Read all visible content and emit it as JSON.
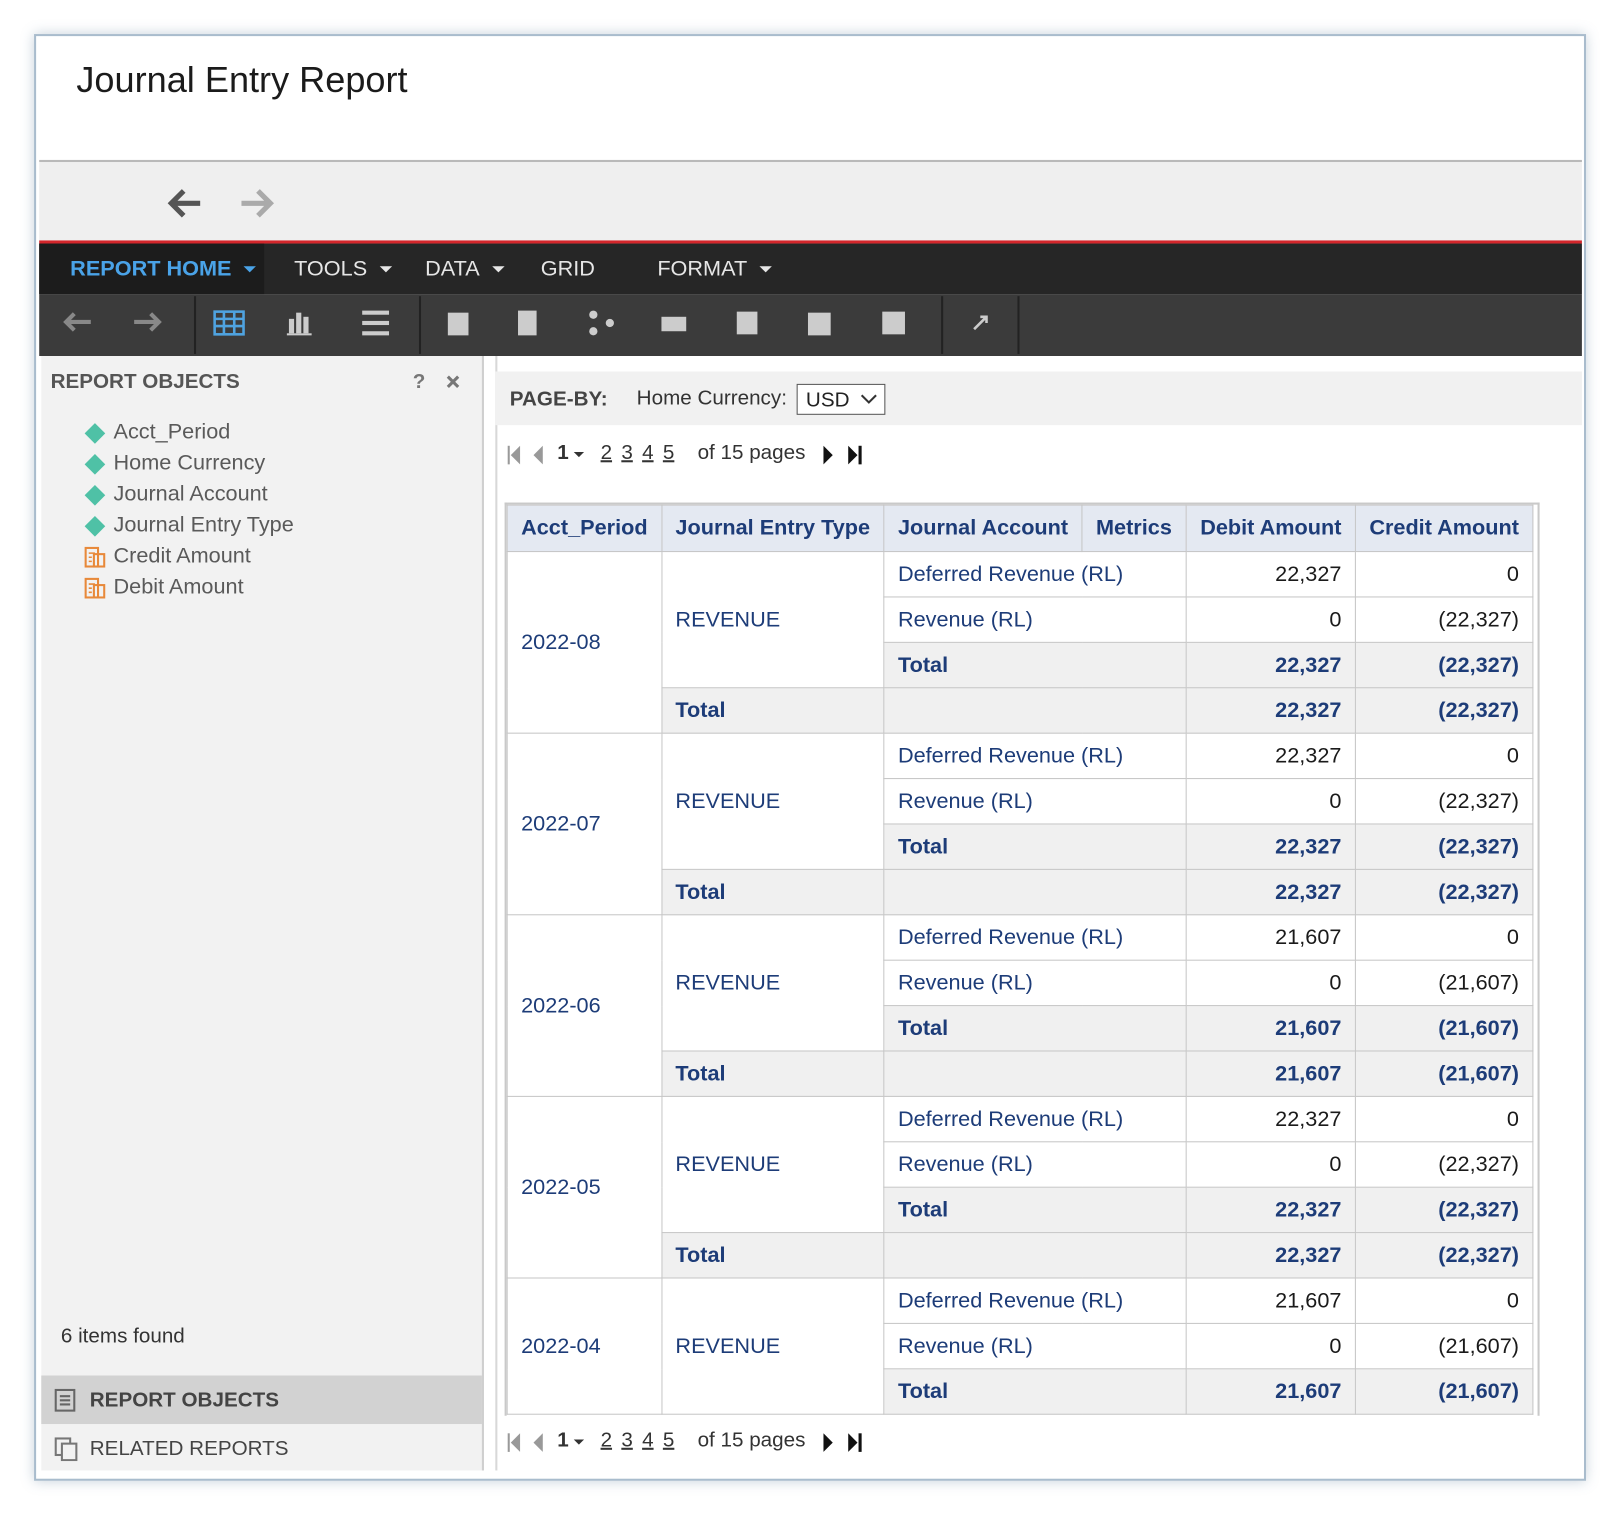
{
  "header": {
    "title": "Journal Entry Report"
  },
  "menu": [
    "REPORT HOME",
    "TOOLS",
    "DATA",
    "GRID",
    "FORMAT"
  ],
  "panel": {
    "title": "REPORT OBJECTS",
    "help": "?",
    "objects": [
      {
        "name": "Acct_Period",
        "kind": "attribute"
      },
      {
        "name": "Home Currency",
        "kind": "attribute"
      },
      {
        "name": "Journal Account",
        "kind": "attribute"
      },
      {
        "name": "Journal Entry Type",
        "kind": "attribute"
      },
      {
        "name": "Credit Amount",
        "kind": "metric"
      },
      {
        "name": "Debit Amount",
        "kind": "metric"
      }
    ],
    "count": "6 items found",
    "tabs": [
      "REPORT OBJECTS",
      "RELATED REPORTS"
    ]
  },
  "page_by": {
    "label": "PAGE-BY:",
    "field": "Home Currency:",
    "value": "USD"
  },
  "pager": {
    "current": "1",
    "pages": [
      "2",
      "3",
      "4",
      "5"
    ],
    "total": "of 15 pages"
  },
  "table": {
    "columns": [
      "Acct_Period",
      "Journal Entry Type",
      "Journal Account",
      "Metrics",
      "Debit Amount",
      "Credit Amount"
    ],
    "groups": [
      {
        "period": "2022-08",
        "type": "REVENUE",
        "rows": [
          [
            "Deferred Revenue (RL)",
            "22,327",
            "0"
          ],
          [
            "Revenue (RL)",
            "0",
            "(22,327)"
          ]
        ],
        "type_total": [
          "Total",
          "22,327",
          "(22,327)"
        ],
        "period_total": [
          "Total",
          "22,327",
          "(22,327)"
        ]
      },
      {
        "period": "2022-07",
        "type": "REVENUE",
        "rows": [
          [
            "Deferred Revenue (RL)",
            "22,327",
            "0"
          ],
          [
            "Revenue (RL)",
            "0",
            "(22,327)"
          ]
        ],
        "type_total": [
          "Total",
          "22,327",
          "(22,327)"
        ],
        "period_total": [
          "Total",
          "22,327",
          "(22,327)"
        ]
      },
      {
        "period": "2022-06",
        "type": "REVENUE",
        "rows": [
          [
            "Deferred Revenue (RL)",
            "21,607",
            "0"
          ],
          [
            "Revenue (RL)",
            "0",
            "(21,607)"
          ]
        ],
        "type_total": [
          "Total",
          "21,607",
          "(21,607)"
        ],
        "period_total": [
          "Total",
          "21,607",
          "(21,607)"
        ]
      },
      {
        "period": "2022-05",
        "type": "REVENUE",
        "rows": [
          [
            "Deferred Revenue (RL)",
            "22,327",
            "0"
          ],
          [
            "Revenue (RL)",
            "0",
            "(22,327)"
          ]
        ],
        "type_total": [
          "Total",
          "22,327",
          "(22,327)"
        ],
        "period_total": [
          "Total",
          "22,327",
          "(22,327)"
        ]
      },
      {
        "period": "2022-04",
        "type": "REVENUE",
        "rows": [
          [
            "Deferred Revenue (RL)",
            "21,607",
            "0"
          ],
          [
            "Revenue (RL)",
            "0",
            "(21,607)"
          ]
        ],
        "type_total": [
          "Total",
          "21,607",
          "(21,607)"
        ]
      }
    ]
  }
}
